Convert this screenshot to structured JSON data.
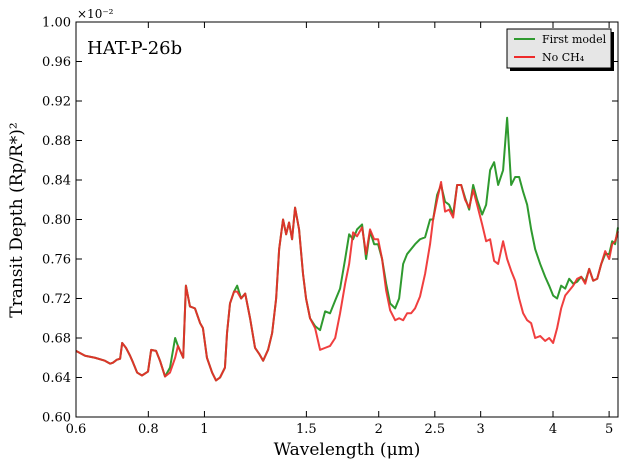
{
  "chart_data": {
    "type": "line",
    "annotation": "HAT-P-26b",
    "offset_text": "×10⁻²",
    "xlabel": "Wavelength (μm)",
    "ylabel": "Transit Depth (Rp/R*)²",
    "xscale": "log",
    "xlim": [
      0.6,
      5.18
    ],
    "ylim": [
      0.6,
      1.0
    ],
    "xticks": [
      0.6,
      0.8,
      1,
      1.5,
      2,
      2.5,
      3,
      4,
      5
    ],
    "yticks": [
      {
        "value": 0.6,
        "label": "0.60"
      },
      {
        "value": 0.64,
        "label": "0.64"
      },
      {
        "value": 0.68,
        "label": "0.68"
      },
      {
        "value": 0.72,
        "label": "0.72"
      },
      {
        "value": 0.76,
        "label": "0.76"
      },
      {
        "value": 0.8,
        "label": "0.80"
      },
      {
        "value": 0.84,
        "label": "0.84"
      },
      {
        "value": 0.88,
        "label": "0.88"
      },
      {
        "value": 0.92,
        "label": "0.92"
      },
      {
        "value": 0.96,
        "label": "0.96"
      },
      {
        "value": 1.0,
        "label": "1.00"
      }
    ],
    "legend": "upper right",
    "x": [
      0.6,
      0.622,
      0.647,
      0.673,
      0.687,
      0.695,
      0.706,
      0.715,
      0.721,
      0.732,
      0.744,
      0.753,
      0.765,
      0.78,
      0.799,
      0.809,
      0.825,
      0.838,
      0.855,
      0.872,
      0.89,
      0.9,
      0.919,
      0.929,
      0.944,
      0.963,
      0.983,
      0.994,
      1.01,
      1.031,
      1.047,
      1.064,
      1.085,
      1.094,
      1.107,
      1.125,
      1.139,
      1.157,
      1.176,
      1.199,
      1.223,
      1.243,
      1.263,
      1.288,
      1.309,
      1.33,
      1.346,
      1.367,
      1.384,
      1.4,
      1.417,
      1.434,
      1.457,
      1.48,
      1.498,
      1.522,
      1.553,
      1.584,
      1.616,
      1.648,
      1.682,
      1.715,
      1.75,
      1.778,
      1.806,
      1.835,
      1.872,
      1.902,
      1.932,
      1.964,
      1.995,
      2.027,
      2.06,
      2.093,
      2.135,
      2.169,
      2.204,
      2.239,
      2.275,
      2.311,
      2.357,
      2.405,
      2.453,
      2.483,
      2.523,
      2.563,
      2.604,
      2.646,
      2.689,
      2.732,
      2.776,
      2.82,
      2.866,
      2.912,
      2.958,
      3.018,
      3.066,
      3.115,
      3.165,
      3.216,
      3.28,
      3.333,
      3.387,
      3.441,
      3.496,
      3.552,
      3.609,
      3.667,
      3.726,
      3.801,
      3.877,
      3.939,
      4.002,
      4.066,
      4.132,
      4.199,
      4.266,
      4.335,
      4.404,
      4.475,
      4.547,
      4.619,
      4.693,
      4.769,
      4.846,
      4.923,
      5.002,
      5.061,
      5.121,
      5.18
    ],
    "series": [
      {
        "name": "First model",
        "color": "#2f9a2f",
        "values": [
          0.667,
          0.662,
          0.66,
          0.657,
          0.654,
          0.655,
          0.658,
          0.659,
          0.675,
          0.67,
          0.662,
          0.655,
          0.645,
          0.642,
          0.646,
          0.668,
          0.667,
          0.657,
          0.641,
          0.65,
          0.68,
          0.672,
          0.66,
          0.733,
          0.712,
          0.71,
          0.695,
          0.69,
          0.66,
          0.645,
          0.637,
          0.64,
          0.65,
          0.685,
          0.715,
          0.727,
          0.733,
          0.72,
          0.725,
          0.7,
          0.67,
          0.664,
          0.657,
          0.668,
          0.685,
          0.72,
          0.77,
          0.8,
          0.785,
          0.797,
          0.78,
          0.812,
          0.79,
          0.745,
          0.72,
          0.7,
          0.692,
          0.688,
          0.707,
          0.705,
          0.718,
          0.73,
          0.76,
          0.785,
          0.78,
          0.79,
          0.795,
          0.76,
          0.788,
          0.775,
          0.775,
          0.76,
          0.735,
          0.715,
          0.71,
          0.72,
          0.755,
          0.765,
          0.77,
          0.775,
          0.78,
          0.782,
          0.8,
          0.8,
          0.825,
          0.835,
          0.818,
          0.815,
          0.805,
          0.835,
          0.835,
          0.822,
          0.81,
          0.835,
          0.82,
          0.805,
          0.815,
          0.85,
          0.858,
          0.835,
          0.85,
          0.903,
          0.835,
          0.843,
          0.843,
          0.828,
          0.815,
          0.79,
          0.77,
          0.755,
          0.742,
          0.733,
          0.723,
          0.72,
          0.733,
          0.73,
          0.74,
          0.735,
          0.737,
          0.742,
          0.737,
          0.75,
          0.738,
          0.74,
          0.755,
          0.765,
          0.765,
          0.778,
          0.775,
          0.792
        ]
      },
      {
        "name": "No CH₄",
        "color": "#ee2a2a",
        "values": [
          0.667,
          0.662,
          0.66,
          0.657,
          0.654,
          0.655,
          0.658,
          0.659,
          0.675,
          0.67,
          0.662,
          0.655,
          0.645,
          0.642,
          0.646,
          0.668,
          0.667,
          0.657,
          0.641,
          0.645,
          0.66,
          0.672,
          0.66,
          0.733,
          0.712,
          0.71,
          0.695,
          0.69,
          0.66,
          0.645,
          0.637,
          0.64,
          0.65,
          0.685,
          0.715,
          0.727,
          0.727,
          0.72,
          0.725,
          0.7,
          0.67,
          0.664,
          0.657,
          0.668,
          0.685,
          0.72,
          0.77,
          0.8,
          0.785,
          0.797,
          0.78,
          0.812,
          0.79,
          0.745,
          0.72,
          0.7,
          0.69,
          0.668,
          0.67,
          0.672,
          0.68,
          0.705,
          0.735,
          0.755,
          0.787,
          0.783,
          0.792,
          0.765,
          0.79,
          0.78,
          0.78,
          0.76,
          0.728,
          0.708,
          0.698,
          0.7,
          0.698,
          0.705,
          0.705,
          0.71,
          0.722,
          0.745,
          0.775,
          0.8,
          0.82,
          0.838,
          0.808,
          0.81,
          0.802,
          0.835,
          0.835,
          0.82,
          0.812,
          0.83,
          0.815,
          0.795,
          0.778,
          0.78,
          0.758,
          0.755,
          0.778,
          0.76,
          0.748,
          0.738,
          0.72,
          0.705,
          0.698,
          0.695,
          0.68,
          0.682,
          0.677,
          0.68,
          0.675,
          0.69,
          0.71,
          0.723,
          0.728,
          0.733,
          0.74,
          0.742,
          0.735,
          0.75,
          0.738,
          0.74,
          0.755,
          0.768,
          0.76,
          0.775,
          0.778,
          0.788
        ]
      }
    ]
  }
}
